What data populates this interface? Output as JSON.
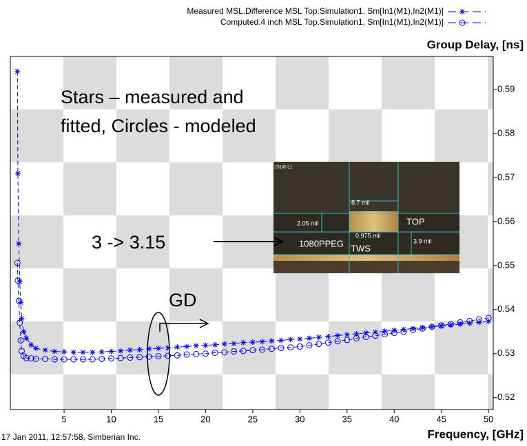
{
  "chart_data": {
    "type": "line",
    "y_label": "Group Delay, [ns]",
    "x_label": "Frequency, [GHz]",
    "footer": "17 Jan 2011, 12:57:58, Simberian Inc.",
    "annotations": [
      "Stars – measured and",
      "fitted, Circles - modeled",
      "3 -> 3.15",
      "GD"
    ],
    "inset_labels": [
      "19145 L1",
      "8.7 mil",
      "2.05 mil",
      "TOP",
      "0.975 mil",
      "1080PPEG",
      "TWS",
      "3.9 mil"
    ],
    "xlim": [
      -0.7,
      50.5
    ],
    "xticks": [
      5,
      10,
      15,
      20,
      25,
      30,
      35,
      40,
      45,
      50
    ],
    "ylim": [
      0.5173,
      0.5975
    ],
    "yticks": [
      0.52,
      0.53,
      0.54,
      0.55,
      0.56,
      0.57,
      0.58,
      0.59
    ],
    "x": [
      0.05,
      0.1,
      0.2,
      0.3,
      0.4,
      0.5,
      0.7,
      1,
      1.5,
      2,
      3,
      4,
      5,
      6,
      7,
      8,
      9,
      10,
      11,
      12,
      13,
      14,
      15,
      16,
      17,
      18,
      19,
      20,
      21,
      22,
      23,
      24,
      25,
      26,
      27,
      28,
      29,
      30,
      31,
      32,
      33,
      34,
      35,
      36,
      37,
      38,
      39,
      40,
      41,
      42,
      43,
      44,
      45,
      46,
      47,
      48,
      49,
      50
    ],
    "series": [
      {
        "name": "Measured MSL.Difference MSL Top.Simulation1, Sm[In1(M1),In2(M1)]",
        "color": "#0000ff",
        "marker": "star",
        "values": [
          0.5941,
          0.5709,
          0.555,
          0.5463,
          0.5416,
          0.538,
          0.535,
          0.5335,
          0.532,
          0.5312,
          0.5308,
          0.5305,
          0.5304,
          0.5303,
          0.5303,
          0.5303,
          0.5304,
          0.5305,
          0.5306,
          0.5308,
          0.5309,
          0.5311,
          0.5312,
          0.5313,
          0.5315,
          0.5316,
          0.5318,
          0.5319,
          0.532,
          0.5322,
          0.5323,
          0.5325,
          0.5326,
          0.5327,
          0.5329,
          0.533,
          0.5332,
          0.5333,
          0.5335,
          0.5337,
          0.5339,
          0.5341,
          0.5343,
          0.5345,
          0.5347,
          0.5349,
          0.5351,
          0.5353,
          0.5355,
          0.5357,
          0.5359,
          0.5361,
          0.5363,
          0.5365,
          0.5367,
          0.5369,
          0.5371,
          0.5373
        ]
      },
      {
        "name": "Computed.4 inch MSL Top.Simulation1, Sm[In1(M1),In2(M1)]",
        "color": "#0000ff",
        "marker": "circle",
        "values": [
          0.5506,
          0.5466,
          0.542,
          0.537,
          0.533,
          0.5306,
          0.5295,
          0.529,
          0.5289,
          0.5288,
          0.5288,
          0.5287,
          0.5287,
          0.5287,
          0.5287,
          0.5287,
          0.5288,
          0.5289,
          0.529,
          0.5291,
          0.5292,
          0.5293,
          0.5294,
          0.5295,
          0.5296,
          0.5298,
          0.5299,
          0.53,
          0.5302,
          0.5303,
          0.5305,
          0.5306,
          0.5308,
          0.5309,
          0.5311,
          0.5313,
          0.5314,
          0.5316,
          0.5319,
          0.5322,
          0.5325,
          0.5328,
          0.5331,
          0.5335,
          0.5338,
          0.5341,
          0.5344,
          0.5347,
          0.535,
          0.5354,
          0.5357,
          0.5361,
          0.5364,
          0.5367,
          0.5371,
          0.5374,
          0.5378,
          0.5381
        ]
      }
    ]
  }
}
